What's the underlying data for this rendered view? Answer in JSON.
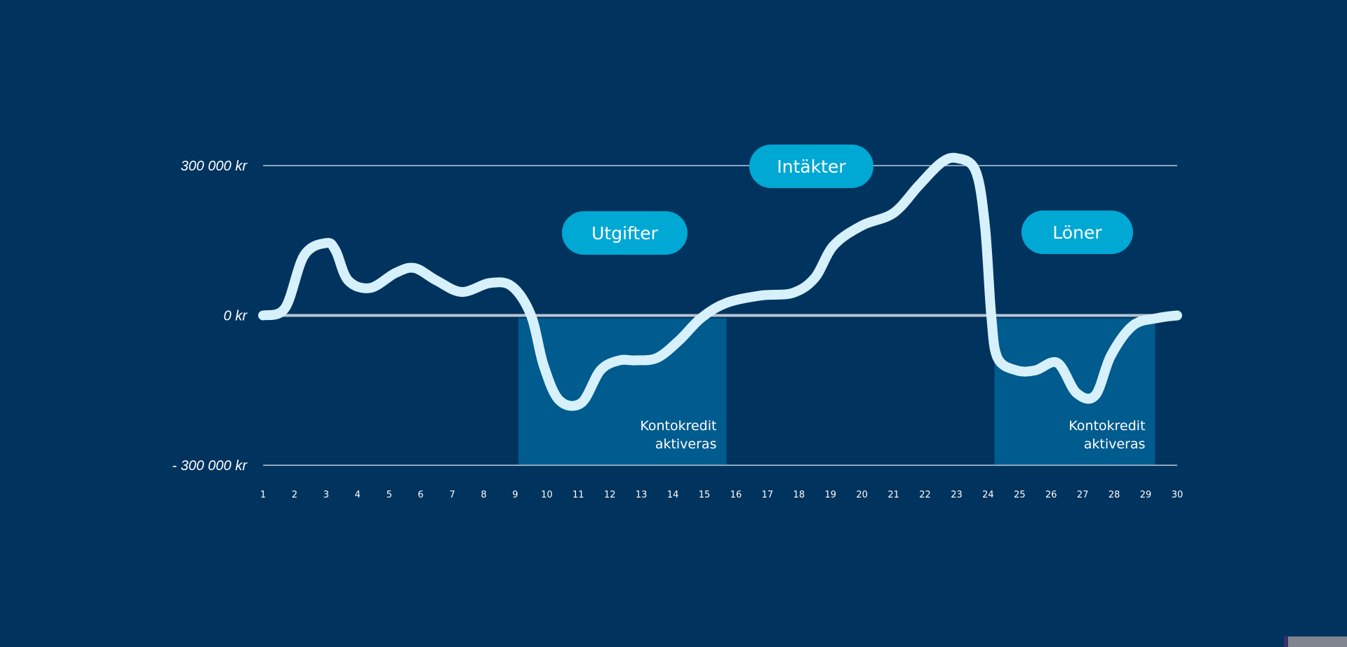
{
  "colors": {
    "background": "#00335e",
    "line": "#d6f1fb",
    "gridline": "#8da6bd",
    "zero_line": "#b7c6d4",
    "credit_region": "#005b8e",
    "pill": "#00a8d4",
    "text": "#ffffff"
  },
  "chart_data": {
    "type": "line",
    "title": "",
    "xlabel": "",
    "ylabel": "",
    "x": [
      1,
      2,
      3,
      4,
      5,
      6,
      7,
      8,
      9,
      10,
      11,
      12,
      13,
      14,
      15,
      16,
      17,
      18,
      19,
      20,
      21,
      22,
      23,
      24,
      25,
      26,
      27,
      28,
      29,
      30
    ],
    "xlim": [
      1,
      30
    ],
    "ylim": [
      -300000,
      300000
    ],
    "yticks": [
      {
        "value": 300000,
        "label": "300 000 kr"
      },
      {
        "value": 0,
        "label": "0 kr"
      },
      {
        "value": -300000,
        "label": "- 300 000 kr"
      }
    ],
    "series": [
      {
        "points": [
          [
            1,
            0
          ],
          [
            1.7,
            15000
          ],
          [
            2.3,
            120000
          ],
          [
            3.0,
            145000
          ],
          [
            3.3,
            130000
          ],
          [
            3.7,
            70000
          ],
          [
            4.4,
            55000
          ],
          [
            5.2,
            85000
          ],
          [
            5.8,
            95000
          ],
          [
            6.5,
            70000
          ],
          [
            7.3,
            47000
          ],
          [
            8.2,
            65000
          ],
          [
            8.9,
            58000
          ],
          [
            9.5,
            0
          ],
          [
            9.9,
            -100000
          ],
          [
            10.4,
            -170000
          ],
          [
            11.1,
            -175000
          ],
          [
            11.7,
            -110000
          ],
          [
            12.3,
            -90000
          ],
          [
            12.8,
            -90000
          ],
          [
            13.5,
            -85000
          ],
          [
            14.2,
            -50000
          ],
          [
            14.9,
            -5000
          ],
          [
            15.7,
            25000
          ],
          [
            16.8,
            40000
          ],
          [
            17.8,
            45000
          ],
          [
            18.5,
            75000
          ],
          [
            19.1,
            140000
          ],
          [
            20.0,
            180000
          ],
          [
            21.0,
            205000
          ],
          [
            21.8,
            260000
          ],
          [
            22.5,
            305000
          ],
          [
            23.0,
            315000
          ],
          [
            23.6,
            290000
          ],
          [
            23.9,
            180000
          ],
          [
            24.1,
            0
          ],
          [
            24.3,
            -85000
          ],
          [
            24.9,
            -110000
          ],
          [
            25.5,
            -110000
          ],
          [
            26.2,
            -95000
          ],
          [
            26.8,
            -155000
          ],
          [
            27.4,
            -160000
          ],
          [
            27.9,
            -80000
          ],
          [
            28.6,
            -20000
          ],
          [
            29.4,
            -5000
          ],
          [
            30,
            0
          ]
        ]
      }
    ],
    "shaded_regions": [
      {
        "x_start": 9.1,
        "x_end": 15.7,
        "y_start": 0,
        "y_end": -300000,
        "label_lines": [
          "Kontokredit",
          "aktiveras"
        ]
      },
      {
        "x_start": 24.2,
        "x_end": 29.3,
        "y_start": 0,
        "y_end": -300000,
        "label_lines": [
          "Kontokredit",
          "aktiveras"
        ]
      }
    ],
    "annotations": [
      "Utgifter",
      "Intäkter",
      "Löner"
    ],
    "grid": true,
    "legend": "none"
  },
  "pills": {
    "utgifter": "Utgifter",
    "intakter": "Intäkter",
    "loner": "Löner"
  }
}
